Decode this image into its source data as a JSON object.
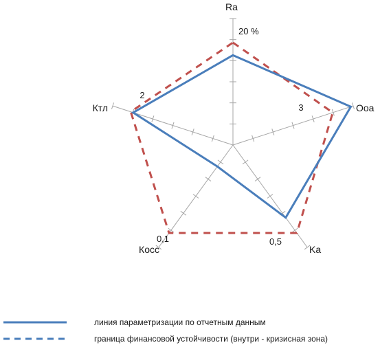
{
  "chart_data": {
    "type": "radar",
    "title": "",
    "axes": [
      "Ra",
      "Ooa",
      "Ka",
      "Косс",
      "Ктл"
    ],
    "axis_value_labels": [
      "20 %",
      "3",
      "0,5",
      "0,1",
      "2"
    ],
    "series": [
      {
        "name": "линия параметризации по отчетным данным",
        "color": "#4a7ebb",
        "style": "solid",
        "values": [
          0.71,
          0.98,
          0.71,
          0.21,
          0.83
        ]
      },
      {
        "name": "граница финансовой устойчивости (внутри - кризисная зона)",
        "color": "#c0504d",
        "style": "dashed",
        "values": [
          0.81,
          0.83,
          0.86,
          0.86,
          0.85
        ]
      }
    ],
    "scale": {
      "min": 0,
      "max": 1,
      "ticks": 6
    },
    "grid": false,
    "legend_position": "bottom"
  }
}
